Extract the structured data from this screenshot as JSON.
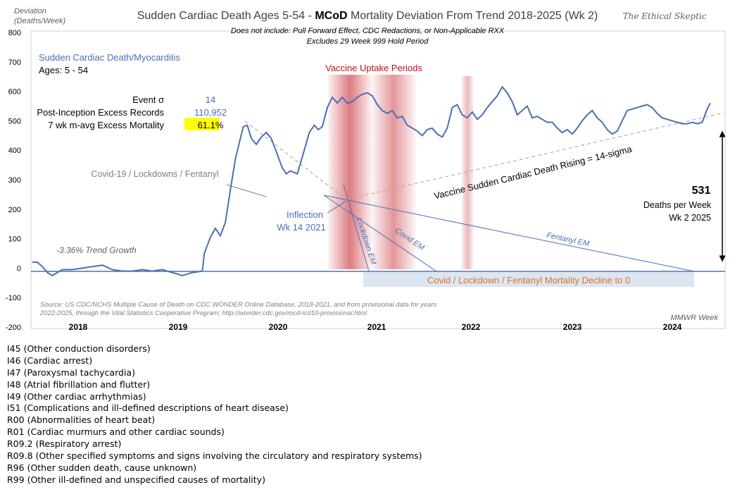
{
  "chart_data": {
    "type": "line",
    "title_prefix": "Sudden Cardiac Death Ages 5-54 - ",
    "title_bold": "MCoD",
    "title_suffix": " Mortality Deviation From Trend  2018-2025 (Wk 2)",
    "subtitle_1": "Does not include: Pull Forward Effect,  CDC Redactions, or Non-Applicable RXX",
    "subtitle_2": "Excludes 29 Week 999 Hold Period",
    "brand": "The Ethical Skeptic",
    "ylabel_1": "Deviation",
    "ylabel_2": "(Deaths/Week)",
    "xlabel": "MMWR Week",
    "ylim": [
      -200,
      800
    ],
    "yticks": [
      "800",
      "700",
      "600",
      "500",
      "400",
      "300",
      "200",
      "100",
      "0",
      "-100",
      "-200"
    ],
    "x_years": [
      "2018",
      "2019",
      "2020",
      "2021",
      "2022",
      "2023",
      "2024"
    ],
    "series_name": "Sudden Cardiac Death/Myocarditis",
    "series_color": "#4a6fb5",
    "ages": "Ages: 5 - 54",
    "stats": [
      {
        "label": "Event σ",
        "value": "14"
      },
      {
        "label": "Post-Inception Excess Records",
        "value": "110,952"
      },
      {
        "label": "7 wk m-avg Excess Mortality",
        "value": "61.1%"
      }
    ],
    "vaccine_label": "Vaccine Uptake Periods",
    "vaccine_color": "#c0101a",
    "covid_label": "Covid-19 / Lockdowns / Fentanyl",
    "trend_label": "-3.36% Trend Growth",
    "inflection_1": "Inflection",
    "inflection_2": "Wk 14 2021",
    "rising_label": "Vaccine Sudden Cardiac Death Rising = 14-sigma",
    "lockdown_em": "Lockdown EM",
    "covid_em": "Covid EM",
    "fentanyl_em": "Fentanyl EM",
    "decline_label": "Covid / Lockdown / Fentanyl Mortality Decline to 0",
    "latest_value": "531",
    "latest_1": "Deaths per Week",
    "latest_2": "Wk 2 2025",
    "source_1": "Source: US CDC/NCHS Multiple Cause of Death on CDC WONDER Online Database, 2018-2021, and from provisional data for years",
    "source_2": "2022-2025, through the Vital Statistics Cooperative Program; http://wonder.cdc.gov/mcd-icd10-provisional.html",
    "points": [
      [
        2018.0,
        20
      ],
      [
        2018.05,
        20
      ],
      [
        2018.1,
        5
      ],
      [
        2018.15,
        -15
      ],
      [
        2018.2,
        -25
      ],
      [
        2018.25,
        -15
      ],
      [
        2018.3,
        -5
      ],
      [
        2018.4,
        -5
      ],
      [
        2018.5,
        0
      ],
      [
        2018.6,
        5
      ],
      [
        2018.7,
        10
      ],
      [
        2018.8,
        -5
      ],
      [
        2018.9,
        -10
      ],
      [
        2019.0,
        -10
      ],
      [
        2019.1,
        -5
      ],
      [
        2019.2,
        -10
      ],
      [
        2019.3,
        -5
      ],
      [
        2019.4,
        -15
      ],
      [
        2019.5,
        -25
      ],
      [
        2019.6,
        -15
      ],
      [
        2019.7,
        -10
      ],
      [
        2019.72,
        50
      ],
      [
        2019.78,
        105
      ],
      [
        2019.83,
        135
      ],
      [
        2019.88,
        110
      ],
      [
        2019.93,
        155
      ],
      [
        2019.98,
        265
      ],
      [
        2020.03,
        370
      ],
      [
        2020.08,
        440
      ],
      [
        2020.11,
        480
      ],
      [
        2020.15,
        485
      ],
      [
        2020.19,
        440
      ],
      [
        2020.24,
        420
      ],
      [
        2020.29,
        445
      ],
      [
        2020.34,
        460
      ],
      [
        2020.39,
        440
      ],
      [
        2020.44,
        395
      ],
      [
        2020.5,
        340
      ],
      [
        2020.54,
        320
      ],
      [
        2020.58,
        330
      ],
      [
        2020.65,
        320
      ],
      [
        2020.72,
        400
      ],
      [
        2020.77,
        460
      ],
      [
        2020.82,
        485
      ],
      [
        2020.86,
        470
      ],
      [
        2020.9,
        480
      ],
      [
        2020.95,
        545
      ],
      [
        2021.0,
        580
      ],
      [
        2021.05,
        560
      ],
      [
        2021.1,
        580
      ],
      [
        2021.15,
        560
      ],
      [
        2021.2,
        565
      ],
      [
        2021.25,
        580
      ],
      [
        2021.3,
        590
      ],
      [
        2021.35,
        595
      ],
      [
        2021.4,
        585
      ],
      [
        2021.45,
        555
      ],
      [
        2021.5,
        535
      ],
      [
        2021.55,
        525
      ],
      [
        2021.6,
        535
      ],
      [
        2021.65,
        510
      ],
      [
        2021.7,
        515
      ],
      [
        2021.75,
        485
      ],
      [
        2021.8,
        475
      ],
      [
        2021.85,
        465
      ],
      [
        2021.9,
        450
      ],
      [
        2021.95,
        470
      ],
      [
        2022.0,
        475
      ],
      [
        2022.05,
        455
      ],
      [
        2022.1,
        445
      ],
      [
        2022.15,
        475
      ],
      [
        2022.2,
        545
      ],
      [
        2022.25,
        555
      ],
      [
        2022.3,
        520
      ],
      [
        2022.35,
        510
      ],
      [
        2022.4,
        530
      ],
      [
        2022.45,
        505
      ],
      [
        2022.5,
        520
      ],
      [
        2022.55,
        545
      ],
      [
        2022.6,
        565
      ],
      [
        2022.65,
        585
      ],
      [
        2022.7,
        615
      ],
      [
        2022.75,
        595
      ],
      [
        2022.8,
        565
      ],
      [
        2022.85,
        520
      ],
      [
        2022.9,
        535
      ],
      [
        2022.95,
        550
      ],
      [
        2023.0,
        510
      ],
      [
        2023.05,
        515
      ],
      [
        2023.1,
        505
      ],
      [
        2023.15,
        495
      ],
      [
        2023.2,
        495
      ],
      [
        2023.25,
        475
      ],
      [
        2023.3,
        460
      ],
      [
        2023.35,
        470
      ],
      [
        2023.4,
        455
      ],
      [
        2023.45,
        475
      ],
      [
        2023.5,
        500
      ],
      [
        2023.55,
        520
      ],
      [
        2023.6,
        535
      ],
      [
        2023.65,
        510
      ],
      [
        2023.7,
        495
      ],
      [
        2023.75,
        470
      ],
      [
        2023.8,
        455
      ],
      [
        2023.85,
        465
      ],
      [
        2023.9,
        500
      ],
      [
        2023.95,
        535
      ],
      [
        2024.0,
        540
      ],
      [
        2024.05,
        545
      ],
      [
        2024.1,
        550
      ],
      [
        2024.15,
        555
      ],
      [
        2024.2,
        545
      ],
      [
        2024.25,
        525
      ],
      [
        2024.3,
        510
      ],
      [
        2024.35,
        505
      ],
      [
        2024.4,
        500
      ],
      [
        2024.45,
        495
      ],
      [
        2024.5,
        490
      ],
      [
        2024.55,
        490
      ],
      [
        2024.6,
        495
      ],
      [
        2024.65,
        490
      ],
      [
        2024.7,
        495
      ],
      [
        2024.75,
        540
      ],
      [
        2024.78,
        560
      ]
    ]
  },
  "icd_codes": [
    "I45 (Other conduction  disorders)",
    "I46 (Cardiac arrest)",
    "I47 (Paroxysmal tachycardia)",
    "I48 (Atrial fibrillation  and flutter)",
    "I49 (Other cardiac arrhythmias)",
    "I51 (Complications  and ill-defined  descriptions of heart disease)",
    "R00 (Abnormalities of heart beat)",
    "R01 (Cardiac murmurs and other cardiac sounds)",
    "R09.2 (Respiratory arrest)",
    "R09.8 (Other specified symptoms and signs involving  the circulatory and respiratory systems)",
    "R96 (Other sudden death, cause unknown)",
    "R99 (Other ill-defined  and unspecified causes of mortality)"
  ]
}
